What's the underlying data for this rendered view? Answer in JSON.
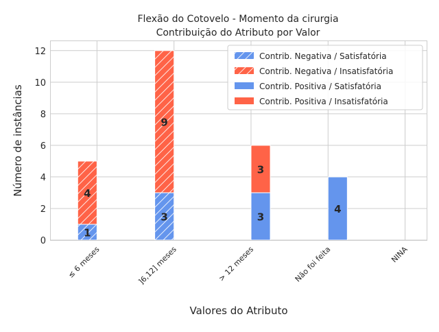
{
  "chart_data": {
    "type": "bar",
    "title_line1": "Flexão do Cotovelo - Momento da cirurgia",
    "title_line2": "Contribuição do Atributo por Valor",
    "xlabel": "Valores do Atributo",
    "ylabel": "Número de instâncias",
    "ylim": [
      0,
      12.6
    ],
    "yticks": [
      "0",
      "2",
      "4",
      "6",
      "8",
      "10",
      "12"
    ],
    "categories": [
      "≤ 6 meses",
      "]6,12] meses",
      "> 12 meses",
      "Não foi feita",
      "NINA"
    ],
    "grid": true,
    "legend_position": "top-right",
    "colors": {
      "satisfatoria": "#6495ED",
      "insatisfatoria": "#FF6347"
    },
    "series": [
      {
        "name": "Contrib. Negativa / Satisfatória",
        "group": "negativa",
        "color": "#6495ED",
        "hatched": true,
        "values": [
          1,
          3,
          0,
          0,
          0
        ]
      },
      {
        "name": "Contrib. Negativa / Insatisfatória",
        "group": "negativa",
        "color": "#FF6347",
        "hatched": true,
        "values": [
          4,
          9,
          0,
          0,
          0
        ]
      },
      {
        "name": "Contrib. Positiva / Satisfatória",
        "group": "positiva",
        "color": "#6495ED",
        "hatched": false,
        "values": [
          0,
          0,
          3,
          4,
          0
        ]
      },
      {
        "name": "Contrib. Positiva / Insatisfatória",
        "group": "positiva",
        "color": "#FF6347",
        "hatched": false,
        "values": [
          0,
          0,
          3,
          0,
          0
        ]
      }
    ],
    "data_labels": [
      {
        "category": 0,
        "series": 0,
        "text": "1"
      },
      {
        "category": 0,
        "series": 1,
        "text": "4"
      },
      {
        "category": 1,
        "series": 0,
        "text": "3"
      },
      {
        "category": 1,
        "series": 1,
        "text": "9"
      },
      {
        "category": 2,
        "series": 2,
        "text": "3"
      },
      {
        "category": 2,
        "series": 3,
        "text": "3"
      },
      {
        "category": 3,
        "series": 2,
        "text": "4"
      }
    ]
  }
}
